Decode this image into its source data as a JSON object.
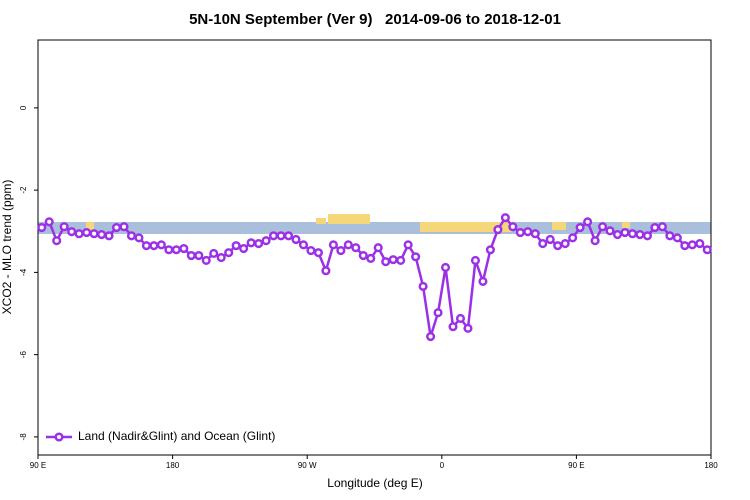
{
  "chart_data": {
    "type": "line",
    "title": "5N-10N September (Ver 9)   2014-09-06 to 2018-12-01",
    "x_label": "Longitude (deg E)",
    "y_label": "XCO2 - MLO trend (ppm)",
    "xlim": [
      90,
      540
    ],
    "ylim": [
      -8.44,
      1.65
    ],
    "xticks": [
      {
        "value": 90,
        "label": "90 E"
      },
      {
        "value": 180,
        "label": "180"
      },
      {
        "value": 270,
        "label": "90 W"
      },
      {
        "value": 360,
        "label": "0"
      },
      {
        "value": 450,
        "label": "90 E"
      },
      {
        "value": 540,
        "label": "180"
      }
    ],
    "yticks": [
      0,
      -2,
      -4,
      -6,
      -8
    ],
    "legend": "bottom-left",
    "x": [
      92.5,
      97.5,
      102.5,
      107.5,
      112.5,
      117.5,
      122.5,
      127.5,
      132.5,
      137.5,
      142.5,
      147.5,
      152.5,
      157.5,
      162.5,
      167.5,
      172.5,
      177.5,
      182.5,
      187.5,
      192.5,
      197.5,
      202.5,
      207.5,
      212.5,
      217.5,
      222.5,
      227.5,
      232.5,
      237.5,
      242.5,
      247.5,
      252.5,
      257.5,
      262.5,
      267.5,
      272.5,
      277.5,
      282.5,
      287.5,
      292.5,
      297.5,
      302.5,
      307.5,
      312.5,
      317.5,
      322.5,
      327.5,
      332.5,
      337.5,
      342.5,
      347.5,
      352.5,
      357.5,
      362.5,
      367.5,
      372.5,
      377.5,
      382.5,
      387.5,
      392.5,
      397.5,
      402.5,
      407.5,
      412.5,
      417.5,
      422.5,
      427.5,
      432.5,
      437.5,
      442.5,
      447.5,
      452.5,
      457.5,
      462.5,
      467.5,
      472.5,
      477.5,
      482.5,
      487.5,
      492.5,
      497.5,
      502.5,
      507.5,
      512.5,
      517.5,
      522.5,
      527.5,
      532.5,
      537.5
    ],
    "series": [
      {
        "name": "Land (Nadir&Glint) and Ocean (Glint)",
        "color": "#9b30e6",
        "values": [
          -2.91,
          -2.77,
          -3.23,
          -2.89,
          -3.01,
          -3.06,
          -3.03,
          -3.06,
          -3.08,
          -3.11,
          -2.91,
          -2.89,
          -3.11,
          -3.16,
          -3.35,
          -3.35,
          -3.33,
          -3.45,
          -3.45,
          -3.42,
          -3.59,
          -3.59,
          -3.71,
          -3.54,
          -3.64,
          -3.52,
          -3.35,
          -3.42,
          -3.28,
          -3.3,
          -3.23,
          -3.11,
          -3.11,
          -3.11,
          -3.2,
          -3.33,
          -3.47,
          -3.52,
          -3.96,
          -3.33,
          -3.47,
          -3.33,
          -3.4,
          -3.59,
          -3.66,
          -3.4,
          -3.74,
          -3.69,
          -3.71,
          -3.33,
          -3.62,
          -4.34,
          -5.56,
          -4.98,
          -3.88,
          -5.32,
          -5.12,
          -5.36,
          -3.71,
          -4.22,
          -3.45,
          -2.96,
          -2.67,
          -2.89,
          -3.03,
          -3.01,
          -3.06,
          -3.3,
          -3.2,
          -3.35,
          -3.3,
          -3.16,
          -2.91,
          -2.77,
          -3.23,
          -2.89,
          -2.99,
          -3.08,
          -3.03,
          -3.06,
          -3.08,
          -3.11,
          -2.91,
          -2.89,
          -3.11,
          -3.16,
          -3.35,
          -3.33,
          -3.3,
          -3.45
        ]
      }
    ]
  }
}
